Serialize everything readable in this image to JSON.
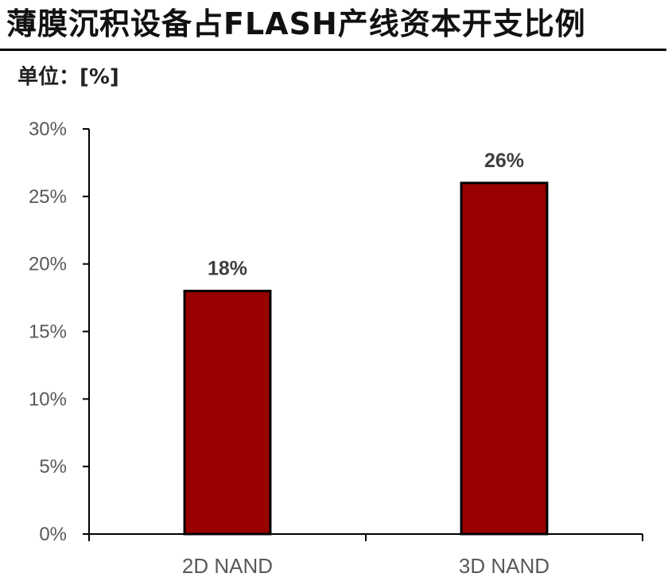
{
  "header": {
    "title": "薄膜沉积设备占FLASH产线资本开支比例",
    "unit": "单位：[%]"
  },
  "chart_data": {
    "type": "bar",
    "title": "薄膜沉积设备占FLASH产线资本开支比例",
    "xlabel": "",
    "ylabel": "",
    "categories": [
      "2D NAND",
      "3D NAND"
    ],
    "values": [
      18,
      26
    ],
    "data_labels": [
      "18%",
      "26%"
    ],
    "ylim": [
      0,
      30
    ],
    "yticks": [
      0,
      5,
      10,
      15,
      20,
      25,
      30
    ],
    "ytick_labels": [
      "0%",
      "5%",
      "10%",
      "15%",
      "20%",
      "25%",
      "30%"
    ],
    "grid": false,
    "legend": "none",
    "colors": {
      "bar_fill": "#990000",
      "bar_stroke": "#000000",
      "axis": "#000000",
      "tick_text": "#595959",
      "data_label_text": "#404040"
    }
  }
}
